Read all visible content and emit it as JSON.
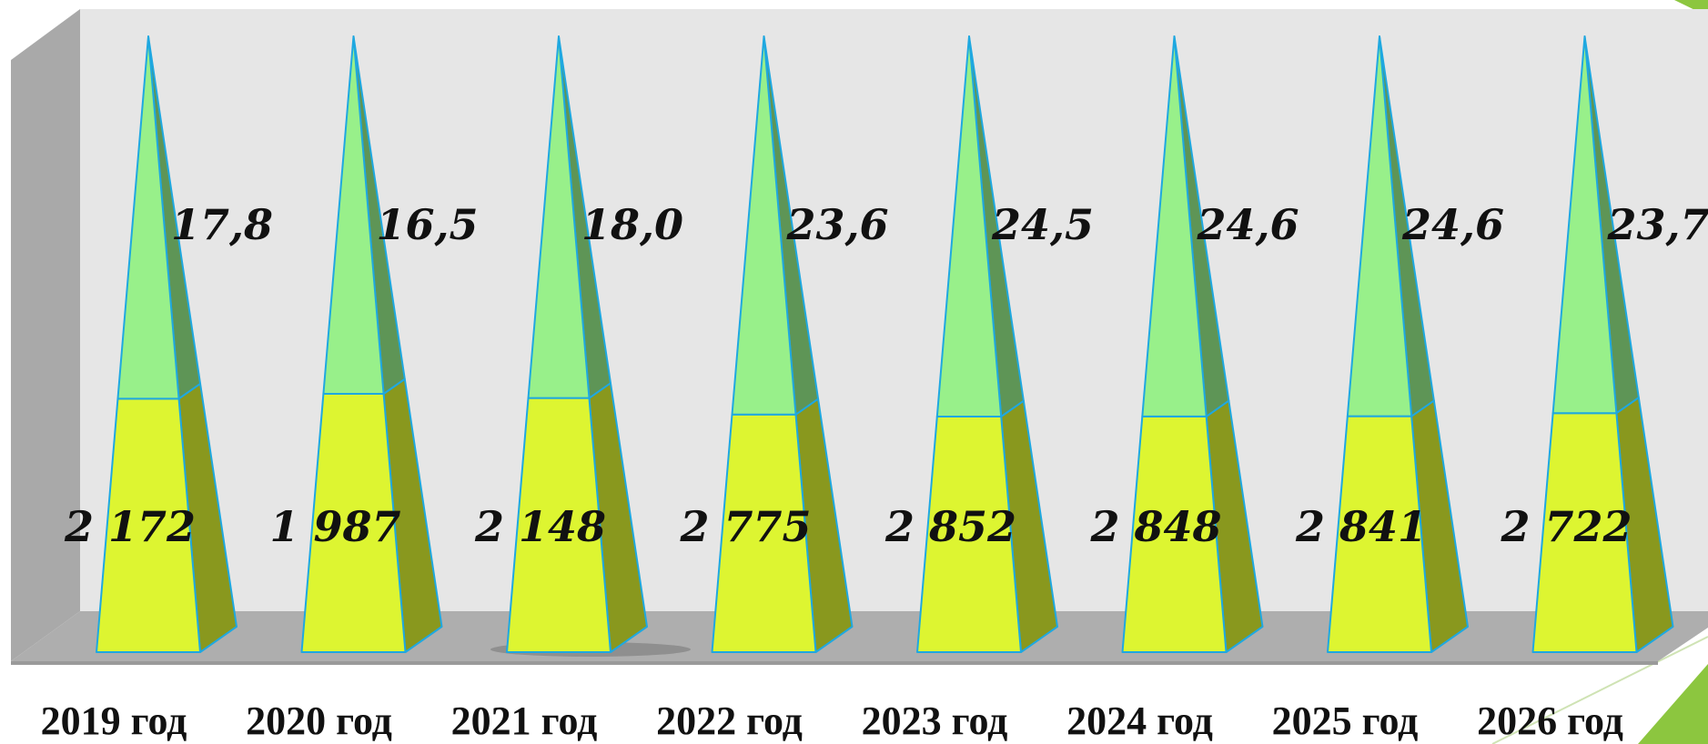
{
  "chart_data": {
    "type": "bar",
    "categories": [
      "2019 год",
      "2020 год",
      "2021 год",
      "2022 год",
      "2023 год",
      "2024 год",
      "2025 год",
      "2026 год"
    ],
    "series": [
      {
        "values": [
          2172,
          1987,
          2148,
          2775,
          2852,
          2848,
          2841,
          2722
        ],
        "labels": [
          "2 172",
          "1 987",
          "2 148",
          "2 775",
          "2 852",
          "2 848",
          "2 841",
          "2 722"
        ],
        "color": "#DDF531"
      },
      {
        "values": [
          17.8,
          16.5,
          18.0,
          23.6,
          24.5,
          24.6,
          24.6,
          23.7
        ],
        "labels": [
          "17,8",
          "16,5",
          "18,0",
          "23,6",
          "24,5",
          "24,6",
          "24,6",
          "23,7"
        ],
        "color": "#98F08A"
      }
    ],
    "stacked": true,
    "shape": "pyramid-3d",
    "grid": false,
    "legend": "none",
    "colors": {
      "back_wall": "#E6E6E6",
      "side_wall": "#A9A9A9",
      "floor": "#AEAEAE",
      "outline": "#1FA8E0",
      "accent": "#8CC63F"
    }
  }
}
